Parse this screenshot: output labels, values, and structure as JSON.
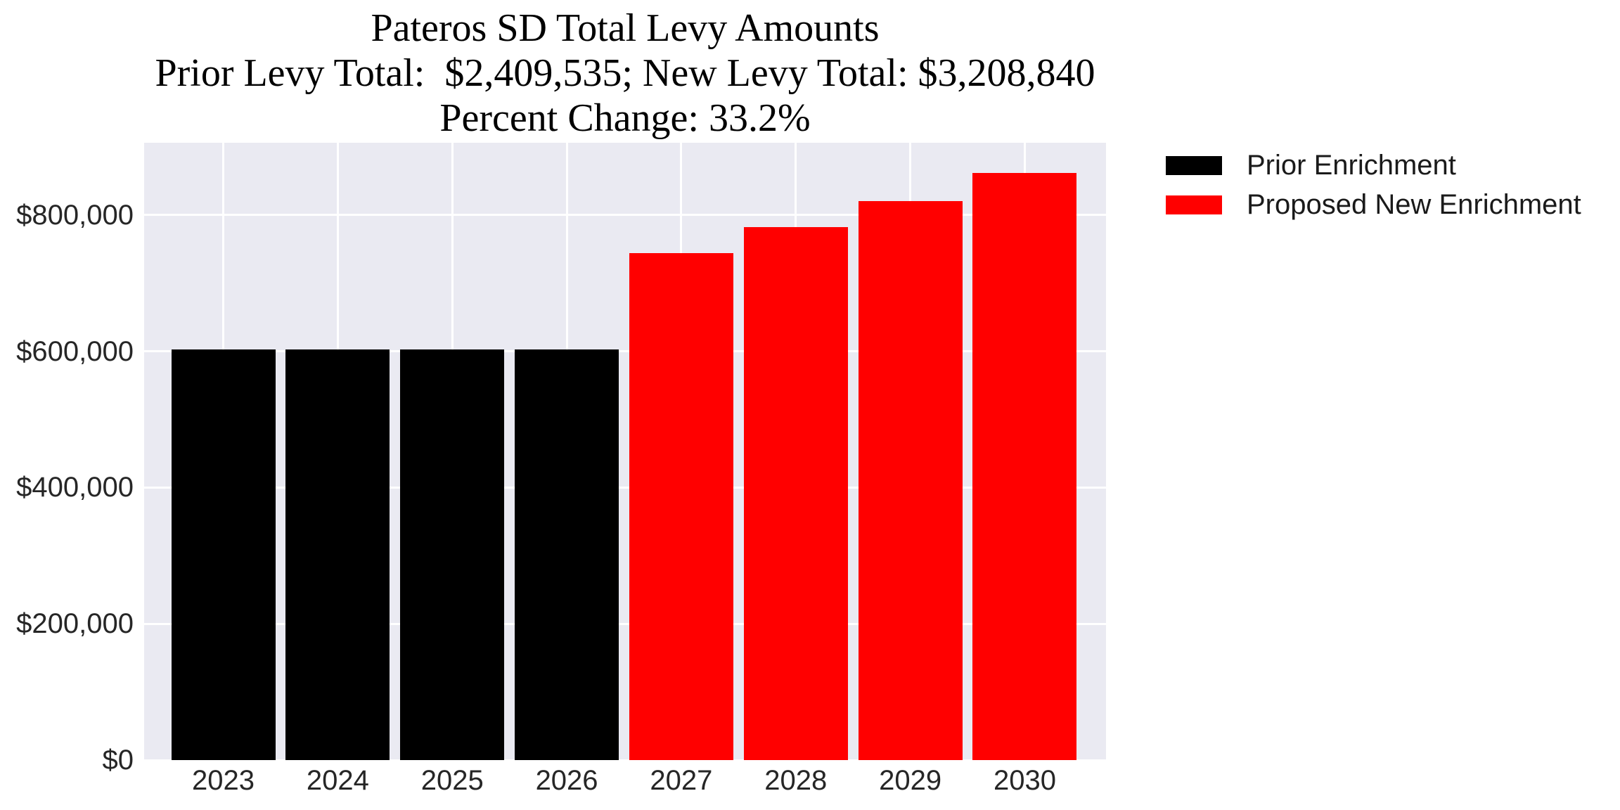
{
  "title": {
    "line1": "Pateros SD Total Levy Amounts",
    "line2": "Prior Levy Total:  $2,409,535; New Levy Total: $3,208,840",
    "line3": "Percent Change: 33.2%"
  },
  "legend": {
    "position": "upper-right-outside",
    "items": [
      {
        "label": "Prior Enrichment",
        "color": "#000000"
      },
      {
        "label": "Proposed New Enrichment",
        "color": "#ff0000"
      }
    ]
  },
  "chart_data": {
    "type": "bar",
    "title": "Pateros SD Total Levy Amounts",
    "title_lines": [
      "Pateros SD Total Levy Amounts",
      "Prior Levy Total:  $2,409,535; New Levy Total: $3,208,840",
      "Percent Change: 33.2%"
    ],
    "prior_levy_total": 2409535,
    "new_levy_total": 3208840,
    "percent_change_pct": 33.2,
    "categories": [
      "2023",
      "2024",
      "2025",
      "2026",
      "2027",
      "2028",
      "2029",
      "2030"
    ],
    "series": [
      {
        "name": "Prior Enrichment",
        "color": "#000000",
        "values": [
          602384,
          602384,
          602384,
          602384,
          null,
          null,
          null,
          null
        ]
      },
      {
        "name": "Proposed New Enrichment",
        "color": "#ff0000",
        "values": [
          null,
          null,
          null,
          null,
          744489,
          781713,
          820799,
          861839
        ]
      }
    ],
    "xlabel": "",
    "ylabel": "",
    "ylim": [
      0,
      906000
    ],
    "yticks": [
      {
        "value": 0,
        "label": "$0"
      },
      {
        "value": 200000,
        "label": "$200,000"
      },
      {
        "value": 400000,
        "label": "$400,000"
      },
      {
        "value": 600000,
        "label": "$600,000"
      },
      {
        "value": 800000,
        "label": "$800,000"
      }
    ],
    "grid": true,
    "plot_background": "#eaeaf2",
    "gridline_color": "#ffffff"
  }
}
